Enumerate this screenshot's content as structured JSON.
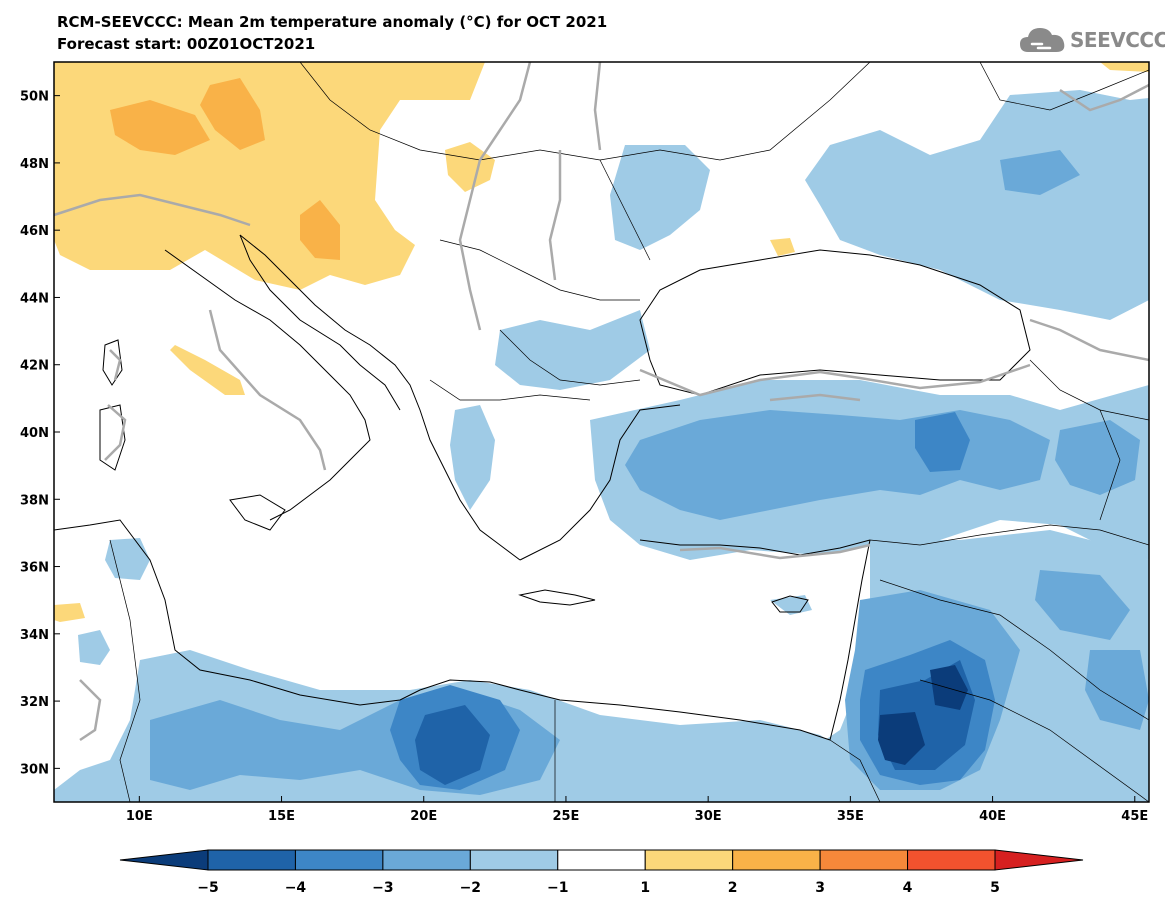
{
  "title": {
    "line1": "RCM-SEEVCCC: Mean 2m temperature anomaly (°C) for OCT 2021",
    "line2": "Forecast start: 00Z01OCT2021"
  },
  "logo": {
    "text": "SEEVCCC",
    "icon": "cloud-icon"
  },
  "map": {
    "lat_range": [
      29,
      51
    ],
    "lon_range": [
      7,
      45.5
    ],
    "lat_labels": [
      "50N",
      "48N",
      "46N",
      "44N",
      "42N",
      "40N",
      "38N",
      "36N",
      "34N",
      "32N",
      "30N"
    ],
    "lon_labels": [
      "10E",
      "15E",
      "20E",
      "25E",
      "30E",
      "35E",
      "40E",
      "45E"
    ]
  },
  "colorbar": {
    "labels": [
      "−5",
      "−4",
      "−3",
      "−2",
      "−1",
      "1",
      "2",
      "3",
      "4",
      "5"
    ],
    "colors": [
      "#0b3c7a",
      "#1f63a8",
      "#3d86c6",
      "#6aa9d8",
      "#9fcbe6",
      "#ffffff",
      "#fcd87a",
      "#f9b248",
      "#f6883a",
      "#f2522e",
      "#d62020"
    ]
  }
}
